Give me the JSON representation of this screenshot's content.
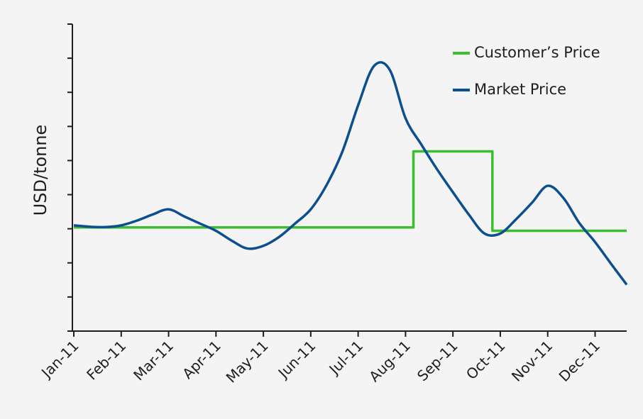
{
  "chart_data": {
    "type": "line",
    "y_label": "USD/tonne",
    "categories": [
      "Jan-11",
      null,
      null,
      "Feb-11",
      null,
      null,
      "Mar-11",
      null,
      null,
      "Apr-11",
      null,
      null,
      "May-11",
      null,
      null,
      "Jun-11",
      null,
      null,
      "Jul-11",
      null,
      null,
      "Aug-11",
      null,
      null,
      "Sep-11",
      null,
      null,
      "Oct-11",
      null,
      null,
      "Nov-11",
      null,
      null,
      "Dec-11",
      null,
      null
    ],
    "series": [
      {
        "name": "Customer’s Price",
        "color": "#3dbe2e",
        "step": true,
        "values": [
          3.04,
          3.04,
          3.04,
          3.04,
          3.04,
          3.04,
          3.04,
          3.04,
          3.04,
          3.04,
          3.04,
          3.04,
          3.04,
          3.04,
          3.04,
          3.04,
          3.04,
          3.04,
          3.04,
          3.04,
          3.04,
          3.04,
          5.27,
          5.27,
          5.27,
          5.27,
          5.27,
          2.94,
          2.94,
          2.94,
          2.94,
          2.94,
          2.94,
          2.94,
          2.94,
          2.94
        ]
      },
      {
        "name": "Market Price",
        "color": "#0c4f8e",
        "step": false,
        "values": [
          3.1,
          3.06,
          3.05,
          3.1,
          3.24,
          3.42,
          3.57,
          3.36,
          3.15,
          2.94,
          2.65,
          2.42,
          2.5,
          2.76,
          3.15,
          3.57,
          4.28,
          5.26,
          6.62,
          7.77,
          7.66,
          6.24,
          5.47,
          4.74,
          4.07,
          3.42,
          2.86,
          2.86,
          3.28,
          3.76,
          4.26,
          3.9,
          3.17,
          2.61,
          1.98,
          1.36
        ]
      }
    ],
    "ylim": [
      0,
      9
    ],
    "yticks": [
      0,
      1,
      2,
      3,
      4,
      5,
      6,
      7,
      8,
      9
    ],
    "legend": "upper right",
    "grid": false
  }
}
